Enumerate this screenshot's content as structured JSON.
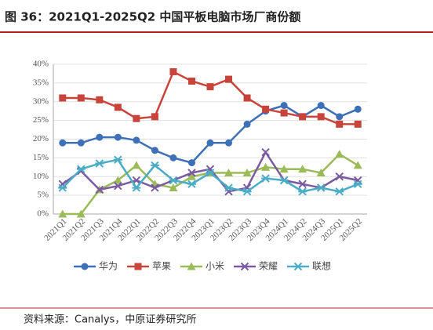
{
  "chart_data": {
    "type": "line",
    "title": "图 36：2021Q1-2025Q2 中国平板电脑市场厂商份额",
    "source": "资料来源：Canalys，中原证券研究所",
    "categories": [
      "2021Q1",
      "2021Q2",
      "2021Q3",
      "2021Q4",
      "2022Q1",
      "2022Q2",
      "2022Q3",
      "2022Q4",
      "2023Q1",
      "2023Q2",
      "2023Q3",
      "2023Q4",
      "2024Q1",
      "2024Q2",
      "2024Q3",
      "2025Q1",
      "2025Q2"
    ],
    "series": [
      {
        "name": "华为",
        "color": "#3e70b8",
        "marker": "circle",
        "values": [
          19,
          19,
          20.5,
          20.5,
          19.7,
          17,
          15,
          13.7,
          19,
          19,
          24,
          27.5,
          29,
          26,
          29,
          26,
          28
        ]
      },
      {
        "name": "苹果",
        "color": "#c8443a",
        "marker": "square",
        "values": [
          31,
          31,
          30.5,
          28.5,
          25.5,
          26,
          38,
          35.5,
          34,
          36,
          31,
          28,
          27,
          26,
          26,
          24,
          24
        ]
      },
      {
        "name": "小米",
        "color": "#9bbb59",
        "marker": "triangle",
        "values": [
          0,
          0,
          6.5,
          9,
          13,
          8,
          7,
          10,
          11,
          11,
          11,
          12.5,
          12,
          12,
          11,
          16,
          13
        ]
      },
      {
        "name": "荣耀",
        "color": "#7b5aa0",
        "marker": "x",
        "values": [
          8,
          11.5,
          6.5,
          7.5,
          9,
          7,
          9,
          11,
          12,
          6,
          7,
          16.5,
          9,
          8,
          7,
          10,
          9
        ]
      },
      {
        "name": "联想",
        "color": "#4bacc6",
        "marker": "star",
        "values": [
          7,
          12,
          13.5,
          14.5,
          7,
          13,
          9,
          8,
          11,
          7,
          6,
          9.5,
          9,
          6,
          7,
          6,
          8
        ]
      }
    ],
    "ylim": [
      0,
      40
    ],
    "yticks": [
      {
        "value": 0,
        "label": "0%"
      },
      {
        "value": 5,
        "label": "5%"
      },
      {
        "value": 10,
        "label": "10%"
      },
      {
        "value": 15,
        "label": "15%"
      },
      {
        "value": 20,
        "label": "20%"
      },
      {
        "value": 25,
        "label": "25%"
      },
      {
        "value": 30,
        "label": "30%"
      },
      {
        "value": 35,
        "label": "35%"
      },
      {
        "value": 40,
        "label": "40%"
      }
    ],
    "grid": true,
    "legend": "bottom"
  }
}
